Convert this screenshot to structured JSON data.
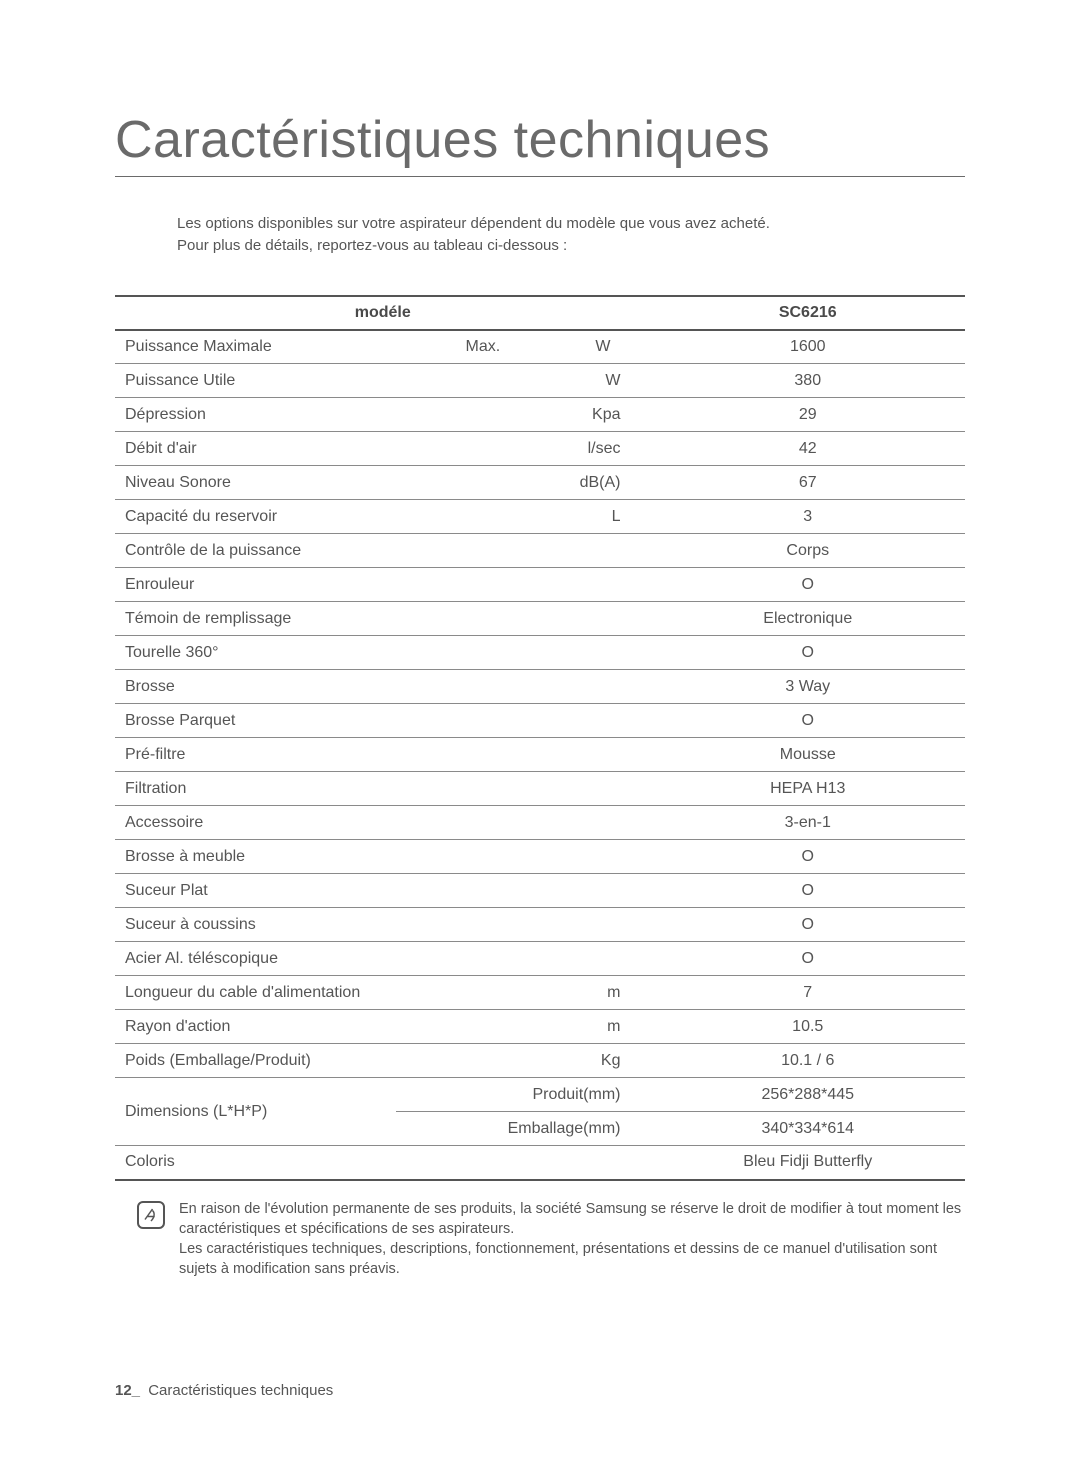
{
  "title": "Caractéristiques techniques",
  "intro_line1": "Les options disponibles sur votre aspirateur dépendent du modèle que vous avez acheté.",
  "intro_line2": "Pour plus de détails, reportez-vous au tableau ci-dessous :",
  "table": {
    "header_label": "modéle",
    "header_value": "SC6216",
    "rows": [
      {
        "label": "Puissance Maximale",
        "unit_left": "Max.",
        "unit_right": "W",
        "value": "1600"
      },
      {
        "label": "Puissance Utile",
        "unit_left": "",
        "unit_right": "W",
        "value": "380"
      },
      {
        "label": "Dépression",
        "unit_left": "",
        "unit_right": "Kpa",
        "value": "29"
      },
      {
        "label": "Débit d'air",
        "unit_left": "",
        "unit_right": "l/sec",
        "value": "42"
      },
      {
        "label": "Niveau Sonore",
        "unit_left": "",
        "unit_right": "dB(A)",
        "value": "67"
      },
      {
        "label": "Capacité du reservoir",
        "unit_left": "",
        "unit_right": "L",
        "value": "3"
      },
      {
        "label": "Contrôle de la puissance",
        "span": true,
        "value": "Corps"
      },
      {
        "label": "Enrouleur",
        "span": true,
        "value": "O"
      },
      {
        "label": "Témoin de remplissage",
        "span": true,
        "value": "Electronique"
      },
      {
        "label": "Tourelle 360°",
        "span": true,
        "value": "O"
      },
      {
        "label": "Brosse",
        "span": true,
        "value": "3 Way"
      },
      {
        "label": "Brosse Parquet",
        "span": true,
        "value": "O"
      },
      {
        "label": "Pré-filtre",
        "span": true,
        "value": "Mousse"
      },
      {
        "label": "Filtration",
        "span": true,
        "value": "HEPA H13"
      },
      {
        "label": "Accessoire",
        "span": true,
        "value": "3-en-1"
      },
      {
        "label": "Brosse à meuble",
        "span": true,
        "value": "O"
      },
      {
        "label": "Suceur Plat",
        "span": true,
        "value": "O"
      },
      {
        "label": "Suceur à coussins",
        "span": true,
        "value": "O"
      },
      {
        "label": "Acier Al. téléscopique",
        "span": true,
        "value": "O"
      },
      {
        "label": "Longueur du cable d'alimentation",
        "unit_left": "",
        "unit_right": "m",
        "value": "7"
      },
      {
        "label": "Rayon d'action",
        "unit_left": "",
        "unit_right": "m",
        "value": "10.5"
      },
      {
        "label": "Poids (Emballage/Produit)",
        "unit_left": "",
        "unit_right": "Kg",
        "value": "10.1 / 6"
      }
    ],
    "dim": {
      "label": "Dimensions (L*H*P)",
      "sub1_unit": "Produit(mm)",
      "sub1_val": "256*288*445",
      "sub2_unit": "Emballage(mm)",
      "sub2_val": "340*334*614"
    },
    "color_row": {
      "label": "Coloris",
      "value": "Bleu Fidji Butterfly"
    }
  },
  "note_line1": "En raison de l'évolution permanente de ses produits, la société Samsung se réserve le droit de modifier à tout moment les caractéristiques et spécifications de ses aspirateurs.",
  "note_line2": "Les caractéristiques techniques, descriptions, fonctionnement, présentations et dessins de ce manuel d'utilisation sont sujets à modification sans préavis.",
  "footer_page": "12_",
  "footer_text": "Caractéristiques techniques"
}
